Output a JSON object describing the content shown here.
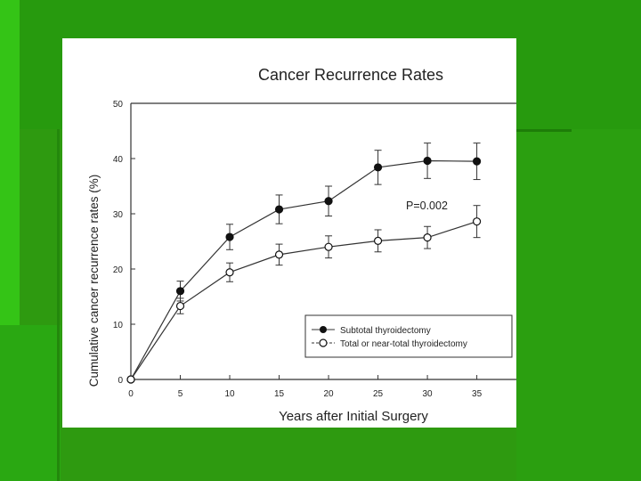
{
  "chart_data": {
    "type": "line",
    "title": "Cancer Recurrence Rates",
    "xlabel": "Years after Initial Surgery",
    "ylabel": "Cumulative cancer recurrence rates (%)",
    "x": [
      0,
      5,
      10,
      15,
      20,
      25,
      30,
      35
    ],
    "xticks": [
      0,
      5,
      10,
      15,
      20,
      25,
      30,
      35
    ],
    "yticks": [
      0,
      10,
      20,
      30,
      40,
      50
    ],
    "xlim": [
      0,
      39
    ],
    "ylim": [
      0,
      50
    ],
    "series": [
      {
        "name": "Subtotal thyroidectomy",
        "marker": "filled-circle",
        "values": [
          0,
          16.0,
          25.8,
          30.8,
          32.3,
          38.4,
          39.6,
          39.5
        ],
        "err": [
          0,
          1.8,
          2.3,
          2.6,
          2.7,
          3.1,
          3.2,
          3.3
        ]
      },
      {
        "name": "Total or near-total thyroidectomy",
        "marker": "open-circle",
        "values": [
          0,
          13.3,
          19.4,
          22.6,
          24.0,
          25.1,
          25.7,
          28.6
        ],
        "err": [
          0,
          1.4,
          1.7,
          1.9,
          2.0,
          2.0,
          2.0,
          2.9
        ]
      }
    ],
    "annotation": "P=0.002",
    "legend_position": "bottom-right"
  },
  "colors": {
    "slide_background": "#2e9a10",
    "panel": "#ffffff",
    "ink": "#222222"
  }
}
